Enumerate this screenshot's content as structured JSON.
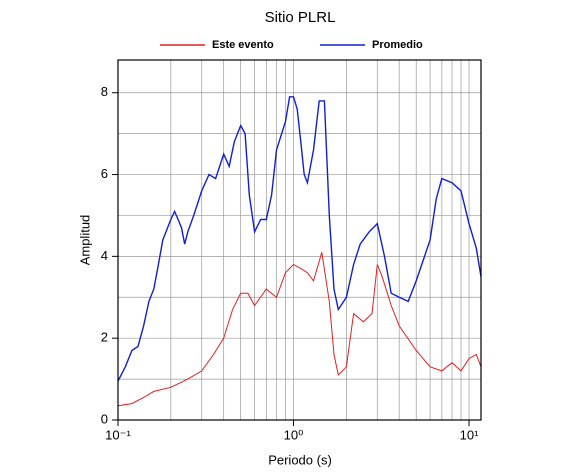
{
  "chart_data": {
    "type": "line",
    "title": "Sitio PLRL",
    "x_label": "Periodo (s)",
    "y_label": "Amplitud",
    "xscale": "log",
    "xlim": [
      0.1,
      11.7
    ],
    "ylim": [
      0,
      8.8
    ],
    "xticks": [
      {
        "value": 0.1,
        "label": "10⁻¹"
      },
      {
        "value": 1,
        "label": "10⁰"
      },
      {
        "value": 10,
        "label": "10¹"
      }
    ],
    "xminor": [
      0.2,
      0.3,
      0.4,
      0.5,
      0.6,
      0.7,
      0.8,
      0.9,
      2,
      3,
      4,
      5,
      6,
      7,
      8,
      9
    ],
    "yticks": [
      0,
      2,
      4,
      6,
      8
    ],
    "yminor": [
      1,
      3,
      5,
      7
    ],
    "grid": true,
    "legend": "top",
    "series": [
      {
        "name": "Este evento",
        "color": "#e0201e",
        "x": [
          0.1,
          0.12,
          0.14,
          0.16,
          0.2,
          0.25,
          0.3,
          0.35,
          0.4,
          0.45,
          0.5,
          0.55,
          0.6,
          0.7,
          0.8,
          0.9,
          1.0,
          1.1,
          1.2,
          1.3,
          1.45,
          1.6,
          1.7,
          1.8,
          2.0,
          2.2,
          2.5,
          2.8,
          3.0,
          3.2,
          3.6,
          4.0,
          5.0,
          6.0,
          7.0,
          8.0,
          9.0,
          10,
          11,
          11.7
        ],
        "values": [
          0.35,
          0.4,
          0.55,
          0.7,
          0.8,
          1.0,
          1.2,
          1.6,
          2.0,
          2.7,
          3.1,
          3.1,
          2.8,
          3.2,
          3.0,
          3.6,
          3.8,
          3.7,
          3.6,
          3.4,
          4.1,
          2.9,
          1.6,
          1.1,
          1.3,
          2.6,
          2.4,
          2.6,
          3.8,
          3.5,
          2.8,
          2.3,
          1.7,
          1.3,
          1.2,
          1.4,
          1.2,
          1.5,
          1.6,
          1.3
        ]
      },
      {
        "name": "Promedio",
        "color": "#1020d0",
        "x": [
          0.1,
          0.11,
          0.12,
          0.13,
          0.14,
          0.15,
          0.16,
          0.17,
          0.18,
          0.2,
          0.21,
          0.22,
          0.23,
          0.24,
          0.25,
          0.27,
          0.3,
          0.33,
          0.36,
          0.4,
          0.43,
          0.46,
          0.5,
          0.53,
          0.56,
          0.6,
          0.65,
          0.7,
          0.75,
          0.8,
          0.9,
          0.95,
          1.0,
          1.05,
          1.1,
          1.15,
          1.2,
          1.3,
          1.4,
          1.5,
          1.6,
          1.7,
          1.8,
          2.0,
          2.2,
          2.4,
          2.7,
          3.0,
          3.3,
          3.6,
          4.0,
          4.5,
          5.0,
          6.0,
          6.5,
          7.0,
          8.0,
          9.0,
          10,
          11,
          11.7
        ],
        "values": [
          0.95,
          1.3,
          1.7,
          1.8,
          2.3,
          2.9,
          3.2,
          3.8,
          4.4,
          4.9,
          5.1,
          4.9,
          4.7,
          4.3,
          4.6,
          5.0,
          5.6,
          6.0,
          5.9,
          6.5,
          6.2,
          6.8,
          7.2,
          7.0,
          5.5,
          4.6,
          4.9,
          4.9,
          5.5,
          6.6,
          7.3,
          7.9,
          7.9,
          7.6,
          6.8,
          6.0,
          5.8,
          6.6,
          7.8,
          7.8,
          5.0,
          3.2,
          2.7,
          3.0,
          3.8,
          4.3,
          4.6,
          4.8,
          4.0,
          3.1,
          3.0,
          2.9,
          3.4,
          4.4,
          5.4,
          5.9,
          5.8,
          5.6,
          4.8,
          4.2,
          3.5
        ]
      }
    ]
  }
}
